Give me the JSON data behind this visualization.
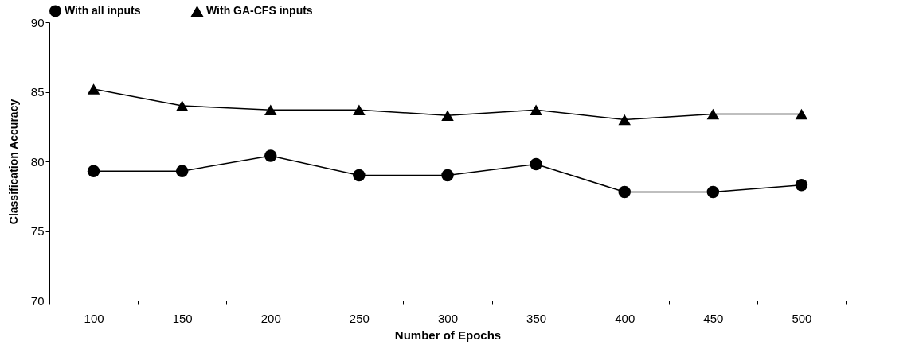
{
  "chart_data": {
    "type": "line",
    "xlabel": "Number of Epochs",
    "ylabel": "Classification Accuracy",
    "categories": [
      "100",
      "150",
      "200",
      "250",
      "300",
      "350",
      "400",
      "450",
      "500"
    ],
    "series": [
      {
        "name": "With all inputs",
        "color": "#000000",
        "marker": "circle",
        "values": [
          79.3,
          79.3,
          80.4,
          79.0,
          79.0,
          79.8,
          77.8,
          77.8,
          78.3
        ]
      },
      {
        "name": "With GA-CFS inputs",
        "color": "#000000",
        "marker": "triangle",
        "values": [
          85.2,
          84.0,
          83.7,
          83.7,
          83.3,
          83.7,
          83.0,
          83.4,
          83.4
        ]
      }
    ],
    "ylim": [
      70,
      90
    ],
    "yticks": [
      70,
      75,
      80,
      85,
      90
    ],
    "grid": false,
    "legend": "top",
    "line_style": "solid"
  }
}
